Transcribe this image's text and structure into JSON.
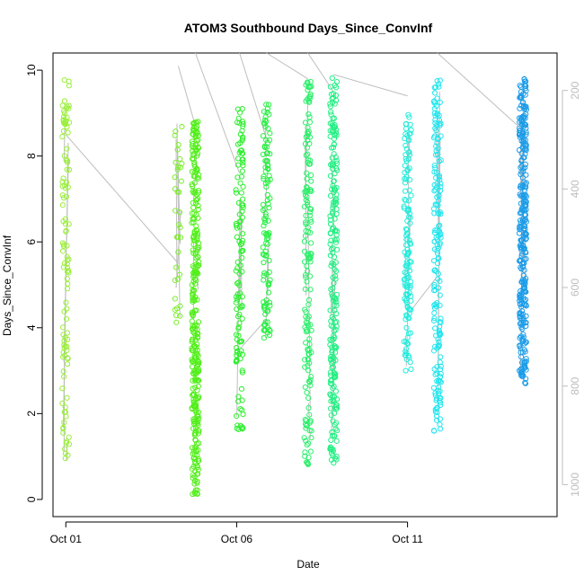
{
  "chart_data": {
    "type": "scatter",
    "title": "ATOM3 Southbound Days_Since_ConvInf",
    "xlabel": "Date",
    "ylabel": "Days_Since_ConvInf",
    "x_unit": "days",
    "xlim": [
      "2023-09-30T15:00",
      "2023-10-15T09:00"
    ],
    "ylim": [
      -0.4,
      10.4
    ],
    "y_ticks": [
      0,
      2,
      4,
      6,
      8,
      10
    ],
    "x_ticks": [
      {
        "label": "Oct 01",
        "value": "2023-10-01"
      },
      {
        "label": "Oct 06",
        "value": "2023-10-06"
      },
      {
        "label": "Oct 11",
        "value": "2023-10-11"
      }
    ],
    "right_axis": {
      "color": "#bdbdbd",
      "ticks": [
        200,
        400,
        600,
        800,
        1000
      ],
      "reversed": true,
      "range": [
        124,
        1065
      ]
    },
    "line_color": "#bebebe",
    "grid": false,
    "clusters": [
      {
        "x": "2023-10-01T00:00",
        "y_range": [
          0.8,
          9.8
        ],
        "color": "#9aef3a",
        "n": 110
      },
      {
        "x": "2023-10-04T07:00",
        "y_range": [
          4.1,
          9.0
        ],
        "color": "#7cef2c",
        "n": 35
      },
      {
        "x": "2023-10-04T19:00",
        "y_range": [
          0.1,
          8.9
        ],
        "color": "#52ef1a",
        "n": 320
      },
      {
        "x": "2023-10-06T02:00",
        "y_range": [
          1.5,
          9.2
        ],
        "color": "#2bef2b",
        "n": 120
      },
      {
        "x": "2023-10-06T21:00",
        "y_range": [
          3.7,
          9.2
        ],
        "color": "#28ef42",
        "n": 110
      },
      {
        "x": "2023-10-08T02:00",
        "y_range": [
          0.8,
          9.9
        ],
        "color": "#2bef6a",
        "n": 160
      },
      {
        "x": "2023-10-08T20:00",
        "y_range": [
          0.8,
          9.9
        ],
        "color": "#22ef82",
        "n": 220
      },
      {
        "x": "2023-10-11T00:00",
        "y_range": [
          3.0,
          9.0
        ],
        "color": "#22ecdc",
        "n": 130
      },
      {
        "x": "2023-10-11T21:00",
        "y_range": [
          1.5,
          9.8
        ],
        "color": "#22e6ee",
        "n": 180
      },
      {
        "x": "2023-10-14T09:00",
        "y_range": [
          2.7,
          9.8
        ],
        "color": "#1c9ce8",
        "n": 300
      }
    ],
    "connector_segments": [
      {
        "from": [
          "2023-10-01T00:00",
          8.5
        ],
        "to": [
          "2023-10-04T07:00",
          5.5
        ]
      },
      {
        "from": [
          "2023-10-04T07:00",
          10.1
        ],
        "to": [
          "2023-10-04T19:00",
          8.7
        ]
      },
      {
        "from": [
          "2023-10-04T19:00",
          10.4
        ],
        "to": [
          "2023-10-06T02:00",
          7.6
        ]
      },
      {
        "from": [
          "2023-10-06T02:00",
          10.4
        ],
        "to": [
          "2023-10-06T21:00",
          8.4
        ]
      },
      {
        "from": [
          "2023-10-06T21:00",
          10.4
        ],
        "to": [
          "2023-10-08T02:00",
          9.8
        ]
      },
      {
        "from": [
          "2023-10-08T02:00",
          10.4
        ],
        "to": [
          "2023-10-08T20:00",
          9.5
        ]
      },
      {
        "from": [
          "2023-10-08T20:00",
          9.9
        ],
        "to": [
          "2023-10-11T00:00",
          9.4
        ]
      },
      {
        "from": [
          "2023-10-11T21:00",
          10.4
        ],
        "to": [
          "2023-10-14T09:00",
          8.6
        ]
      },
      {
        "from": [
          "2023-10-06T02:00",
          3.5
        ],
        "to": [
          "2023-10-06T21:00",
          4.2
        ]
      },
      {
        "from": [
          "2023-10-11T00:00",
          4.3
        ],
        "to": [
          "2023-10-11T21:00",
          5.2
        ]
      }
    ]
  }
}
